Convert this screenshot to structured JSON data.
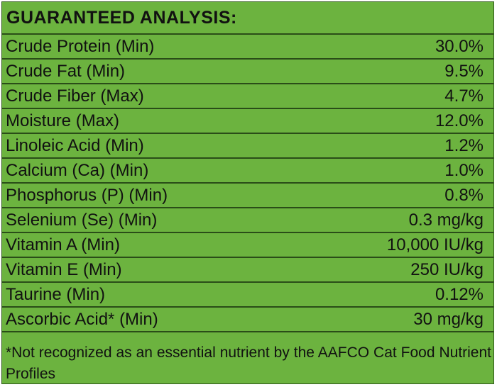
{
  "title": "GUARANTEED ANALYSIS:",
  "table": {
    "rows": [
      [
        "Crude Protein (Min)",
        "30.0%"
      ],
      [
        "Crude Fat (Min)",
        "9.5%"
      ],
      [
        "Crude Fiber (Max)",
        "4.7%"
      ],
      [
        "Moisture (Max)",
        "12.0%"
      ],
      [
        "Linoleic Acid (Min)",
        "1.2%"
      ],
      [
        "Calcium (Ca) (Min)",
        "1.0%"
      ],
      [
        "Phosphorus (P) (Min)",
        "0.8%"
      ],
      [
        "Selenium (Se) (Min)",
        "0.3 mg/kg"
      ],
      [
        "Vitamin A (Min)",
        "10,000 IU/kg"
      ],
      [
        "Vitamin E (Min)",
        "250 IU/kg"
      ],
      [
        "Taurine (Min)",
        "0.12%"
      ],
      [
        "Ascorbic Acid* (Min)",
        "30 mg/kg"
      ]
    ]
  },
  "footnote": "*Not recognized as an essential nutrient by the AAFCO Cat Food Nutrient Profiles"
}
